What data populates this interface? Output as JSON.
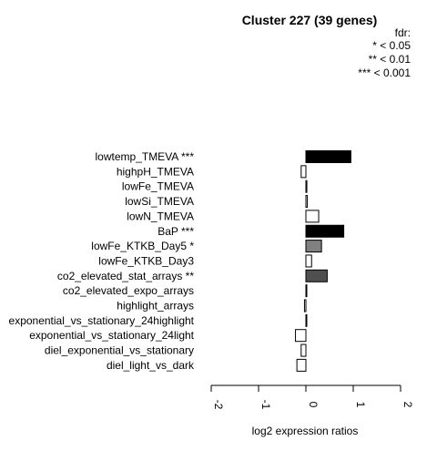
{
  "chart_data": {
    "type": "bar",
    "orientation": "horizontal",
    "title": "Cluster 227 (39 genes)",
    "legend": {
      "title": "fdr:",
      "entries": [
        "* < 0.05",
        "** < 0.01",
        "*** < 0.001"
      ],
      "placement": "top-right"
    },
    "categories": [
      "lowtemp_TMEVA ***",
      "highpH_TMEVA",
      "lowFe_TMEVA",
      "lowSi_TMEVA",
      "lowN_TMEVA",
      "BaP ***",
      "lowFe_KTKB_Day5 *",
      "lowFe_KTKB_Day3",
      "co2_elevated_stat_arrays **",
      "co2_elevated_expo_arrays",
      "highlight_arrays",
      "exponential_vs_stationary_24highlight",
      "exponential_vs_stationary_24light",
      "diel_exponential_vs_stationary",
      "diel_light_vs_dark"
    ],
    "values": [
      0.95,
      -0.1,
      0.02,
      0.03,
      0.27,
      0.8,
      0.33,
      0.12,
      0.45,
      0.01,
      -0.03,
      0.01,
      -0.22,
      -0.1,
      -0.19
    ],
    "bar_colors": [
      "#000000",
      "#ffffff",
      "#ffffff",
      "#ffffff",
      "#ffffff",
      "#000000",
      "#808080",
      "#ffffff",
      "#505050",
      "#ffffff",
      "#ffffff",
      "#ffffff",
      "#ffffff",
      "#ffffff",
      "#ffffff"
    ],
    "xlabel": "log2 expression ratios",
    "xlim": [
      -2,
      2
    ],
    "xticks": [
      "-2",
      "-1",
      "0",
      "1",
      "2"
    ],
    "grid": false
  }
}
